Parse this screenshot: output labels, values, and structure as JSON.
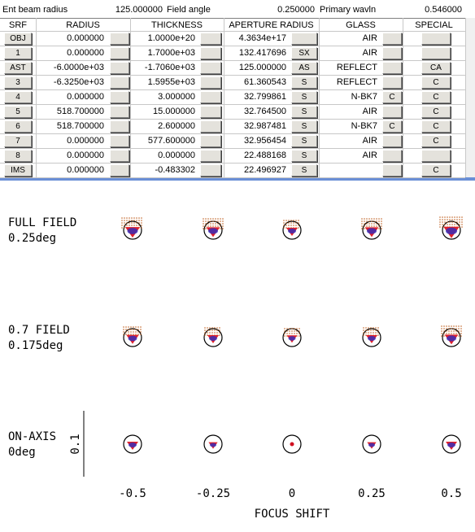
{
  "header": {
    "ent_label": "Ent beam radius",
    "ent_value": "125.000000",
    "field_label": "Field angle",
    "field_value": "0.250000",
    "wavl_label": "Primary wavln",
    "wavl_value": "0.546000"
  },
  "table": {
    "columns": [
      "SRF",
      "RADIUS",
      "THICKNESS",
      "APERTURE RADIUS",
      "GLASS",
      "SPECIAL"
    ],
    "rows": [
      {
        "srf": "OBJ",
        "radius": "0.000000",
        "thickness": "1.0000e+20",
        "aperture": "4.3634e+17",
        "glass": "AIR"
      },
      {
        "srf": "1",
        "radius": "0.000000",
        "thickness": "1.7000e+03",
        "aperture": "132.417696",
        "aperture_flag": "SX",
        "glass": "AIR"
      },
      {
        "srf": "AST",
        "radius": "-6.0000e+03",
        "thickness": "-1.7060e+03",
        "aperture": "125.000000",
        "aperture_flag": "AS",
        "glass": "REFLECT",
        "special": "CA"
      },
      {
        "srf": "3",
        "radius": "-6.3250e+03",
        "thickness": "1.5955e+03",
        "aperture": "61.360543",
        "aperture_flag": "S",
        "glass": "REFLECT",
        "special": "C"
      },
      {
        "srf": "4",
        "radius": "0.000000",
        "thickness": "3.000000",
        "aperture": "32.799861",
        "aperture_flag": "S",
        "glass": "N-BK7",
        "glass_flag": "C",
        "special": "C"
      },
      {
        "srf": "5",
        "radius": "518.700000",
        "thickness": "15.000000",
        "aperture": "32.764500",
        "aperture_flag": "S",
        "glass": "AIR",
        "special": "C"
      },
      {
        "srf": "6",
        "radius": "518.700000",
        "thickness": "2.600000",
        "aperture": "32.987481",
        "aperture_flag": "S",
        "glass": "N-BK7",
        "glass_flag": "C",
        "special": "C"
      },
      {
        "srf": "7",
        "radius": "0.000000",
        "thickness": "577.600000",
        "aperture": "32.956454",
        "aperture_flag": "S",
        "glass": "AIR",
        "special": "C"
      },
      {
        "srf": "8",
        "radius": "0.000000",
        "thickness": "0.000000",
        "aperture": "22.488168",
        "aperture_flag": "S",
        "glass": "AIR"
      },
      {
        "srf": "IMS",
        "radius": "0.000000",
        "thickness": "-0.483302",
        "aperture": "22.496927",
        "aperture_flag": "S",
        "special": "C"
      }
    ]
  },
  "spot_diagram": {
    "row_labels": [
      [
        "FULL FIELD",
        "0.25deg"
      ],
      [
        "0.7 FIELD",
        "0.175deg"
      ],
      [
        "ON-AXIS",
        "0deg"
      ]
    ],
    "scale_label": "0.1",
    "x_labels": [
      "-0.5",
      "-0.25",
      "0",
      "0.25",
      "0.5"
    ],
    "x_title": "FOCUS SHIFT"
  }
}
